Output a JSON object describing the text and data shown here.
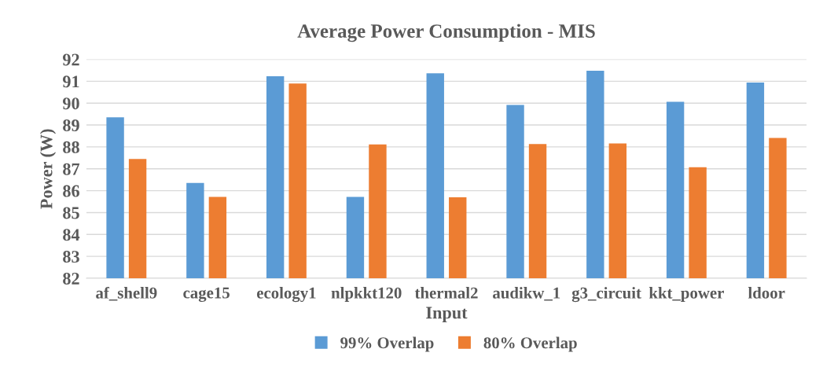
{
  "chart_data": {
    "type": "bar",
    "title": "Average Power Consumption - MIS",
    "xlabel": "Input",
    "ylabel": "Power (W)",
    "categories": [
      "af_shell9",
      "cage15",
      "ecology1",
      "nlpkkt120",
      "thermal2",
      "audikw_1",
      "g3_circuit",
      "kkt_power",
      "ldoor"
    ],
    "series": [
      {
        "name": "99% Overlap",
        "color": "#5b9bd5",
        "values": [
          89.35,
          86.35,
          91.23,
          85.72,
          91.36,
          89.92,
          91.48,
          90.06,
          90.94
        ]
      },
      {
        "name": "80% Overlap",
        "color": "#ed7d31",
        "values": [
          87.45,
          85.72,
          90.9,
          88.11,
          85.7,
          88.13,
          88.16,
          87.07,
          88.41
        ]
      }
    ],
    "ylim": [
      82,
      92
    ],
    "yticks": [
      82,
      83,
      84,
      85,
      86,
      87,
      88,
      89,
      90,
      91,
      92
    ],
    "grid": "y",
    "legend": "bottom"
  }
}
